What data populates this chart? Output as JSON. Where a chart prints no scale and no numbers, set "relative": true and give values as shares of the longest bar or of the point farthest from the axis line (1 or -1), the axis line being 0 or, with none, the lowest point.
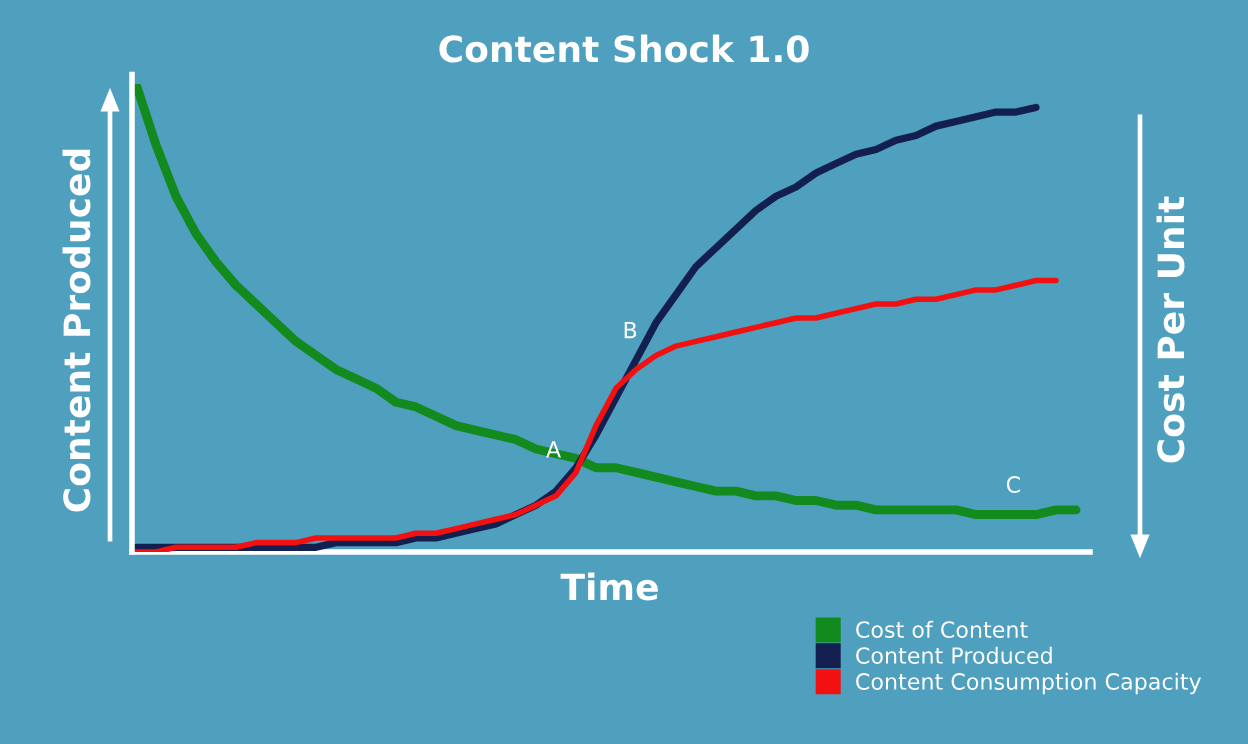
{
  "chart_data": {
    "type": "line",
    "relative": true,
    "title": "Content Shock 1.0",
    "xlabel": "Time",
    "ylabel": "Content Produced",
    "y2label": "Cost Per Unit",
    "tick_labels": false,
    "legend": "bottom right",
    "marker": "none",
    "line_style": "solid",
    "categories": [
      null,
      null,
      null,
      null,
      null,
      null,
      null,
      null,
      null,
      null,
      null,
      null,
      null,
      null,
      null,
      null,
      null,
      null,
      null,
      null,
      null,
      null,
      null,
      null,
      null,
      null,
      null,
      null,
      null,
      null,
      null,
      null,
      null,
      null,
      null,
      null,
      null,
      null,
      null,
      null,
      null,
      null,
      null,
      null,
      null,
      null,
      null,
      null
    ],
    "series": [
      {
        "name": "Cost of Content",
        "color": "#138a1e",
        "values": [
          1.0,
          0.87,
          0.76,
          0.68,
          0.62,
          0.57,
          0.53,
          0.49,
          0.45,
          0.42,
          0.39,
          0.37,
          0.35,
          0.32,
          0.31,
          0.29,
          0.27,
          0.26,
          0.25,
          0.24,
          0.22,
          0.21,
          0.2,
          0.18,
          0.18,
          0.17,
          0.16,
          0.15,
          0.14,
          0.13,
          0.13,
          0.12,
          0.12,
          0.11,
          0.11,
          0.1,
          0.1,
          0.09,
          0.09,
          0.09,
          0.09,
          0.09,
          0.08,
          0.08,
          0.08,
          0.08,
          0.09,
          0.09
        ]
      },
      {
        "name": "Content Produced",
        "color": "#13204f",
        "values": [
          0.01,
          0.01,
          0.01,
          0.01,
          0.01,
          0.01,
          0.01,
          0.01,
          0.01,
          0.01,
          0.02,
          0.02,
          0.02,
          0.02,
          0.03,
          0.03,
          0.04,
          0.05,
          0.06,
          0.08,
          0.1,
          0.13,
          0.18,
          0.25,
          0.33,
          0.41,
          0.49,
          0.55,
          0.61,
          0.65,
          0.69,
          0.73,
          0.76,
          0.78,
          0.81,
          0.83,
          0.85,
          0.86,
          0.88,
          0.89,
          0.91,
          0.92,
          0.93,
          0.94,
          0.94,
          0.95,
          null,
          null
        ]
      },
      {
        "name": "Content Consumption Capacity",
        "color": "#f21010",
        "values": [
          0.0,
          0.0,
          0.01,
          0.01,
          0.01,
          0.01,
          0.02,
          0.02,
          0.02,
          0.03,
          0.03,
          0.03,
          0.03,
          0.03,
          0.04,
          0.04,
          0.05,
          0.06,
          0.07,
          0.08,
          0.1,
          0.12,
          0.17,
          0.27,
          0.35,
          0.39,
          0.42,
          0.44,
          0.45,
          0.46,
          0.47,
          0.48,
          0.49,
          0.5,
          0.5,
          0.51,
          0.52,
          0.53,
          0.53,
          0.54,
          0.54,
          0.55,
          0.56,
          0.56,
          0.57,
          0.58,
          0.58,
          null
        ]
      }
    ],
    "annotations": [
      "A",
      "B",
      "C"
    ]
  }
}
